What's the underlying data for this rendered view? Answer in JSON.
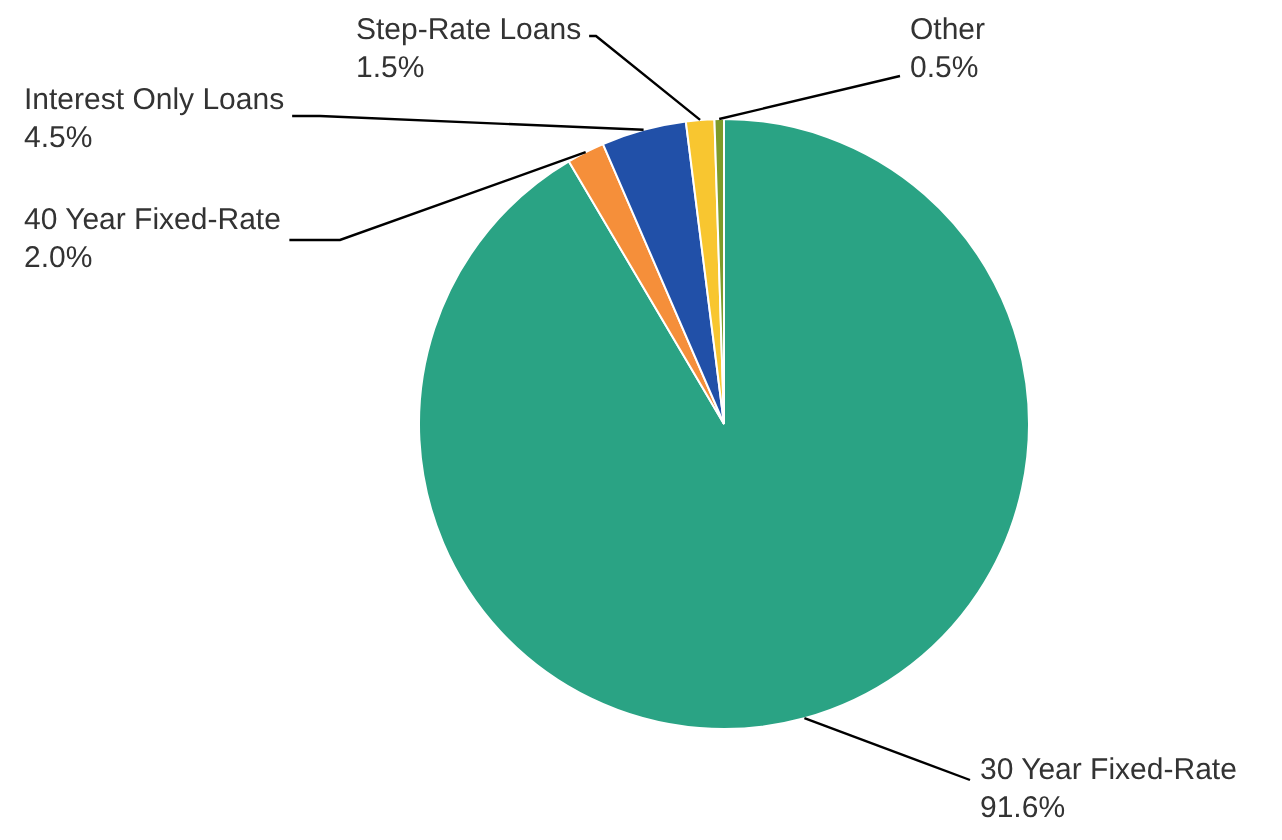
{
  "chart_data": {
    "type": "pie",
    "categories": [
      "30 Year Fixed-Rate",
      "40 Year Fixed-Rate",
      "Interest Only Loans",
      "Step-Rate Loans",
      "Other"
    ],
    "values": [
      91.6,
      2.0,
      4.5,
      1.5,
      0.5
    ],
    "value_labels": [
      "91.6%",
      "2.0%",
      "4.5%",
      "1.5%",
      "0.5%"
    ],
    "colors": [
      "#2aa384",
      "#f58f3a",
      "#2150a8",
      "#f8c630",
      "#7e9b2a"
    ],
    "legend": false
  }
}
